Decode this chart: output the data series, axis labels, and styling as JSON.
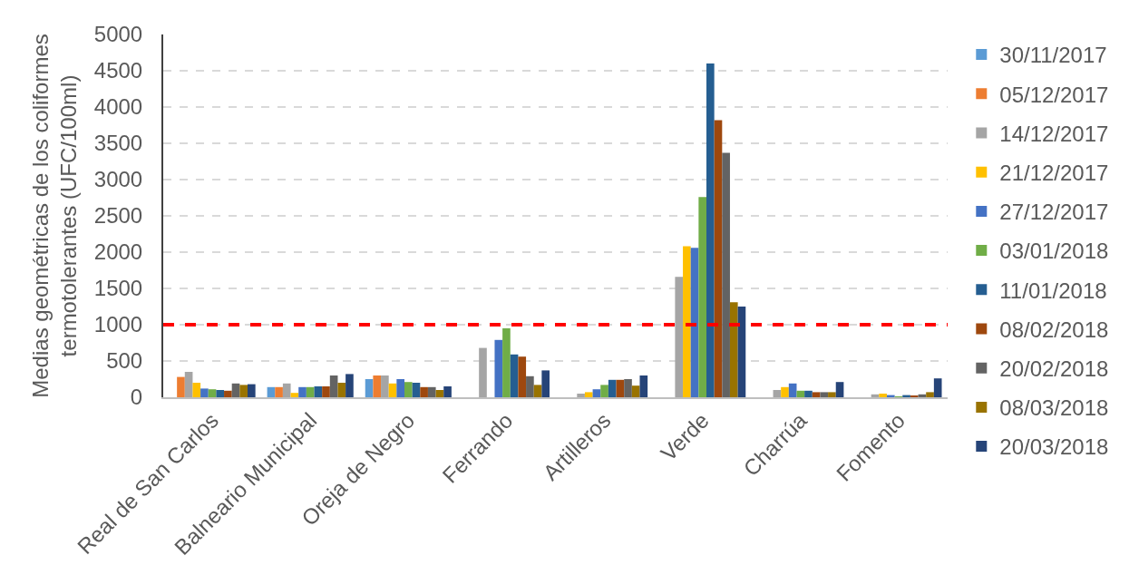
{
  "chart_data": {
    "type": "bar",
    "ylabel": "Medias geométricas de los coliformes\ntermotolerantes (UFC/100ml)",
    "categories": [
      "Real de San Carlos",
      "Balneario Municipal",
      "Oreja de Negro",
      "Ferrando",
      "Artilleros",
      "Verde",
      "Charrúa",
      "Fomento"
    ],
    "series": [
      {
        "name": "30/11/2017",
        "color": "#5b9bd5",
        "values": [
          null,
          140,
          250,
          null,
          null,
          null,
          null,
          null
        ]
      },
      {
        "name": "05/12/2017",
        "color": "#ed7d31",
        "values": [
          280,
          140,
          300,
          null,
          null,
          null,
          null,
          null
        ]
      },
      {
        "name": "14/12/2017",
        "color": "#a5a5a5",
        "values": [
          350,
          190,
          300,
          680,
          50,
          1660,
          100,
          40
        ]
      },
      {
        "name": "21/12/2017",
        "color": "#ffc000",
        "values": [
          200,
          60,
          190,
          null,
          70,
          2080,
          140,
          50
        ]
      },
      {
        "name": "27/12/2017",
        "color": "#4472c4",
        "values": [
          120,
          140,
          250,
          790,
          110,
          2060,
          190,
          30
        ]
      },
      {
        "name": "03/01/2018",
        "color": "#70ad47",
        "values": [
          110,
          140,
          210,
          950,
          170,
          2760,
          90,
          10
        ]
      },
      {
        "name": "11/01/2018",
        "color": "#255e91",
        "values": [
          100,
          150,
          200,
          590,
          240,
          4600,
          90,
          30
        ]
      },
      {
        "name": "08/02/2018",
        "color": "#9e480e",
        "values": [
          90,
          150,
          140,
          560,
          240,
          3820,
          70,
          20
        ]
      },
      {
        "name": "20/02/2018",
        "color": "#636363",
        "values": [
          190,
          300,
          140,
          290,
          250,
          3370,
          70,
          40
        ]
      },
      {
        "name": "08/03/2018",
        "color": "#997300",
        "values": [
          170,
          200,
          100,
          170,
          160,
          1310,
          70,
          70
        ]
      },
      {
        "name": "20/03/2018",
        "color": "#264478",
        "values": [
          180,
          320,
          150,
          370,
          300,
          1250,
          210,
          260
        ]
      }
    ],
    "ylim": [
      0,
      5000
    ],
    "yticks": [
      0,
      500,
      1000,
      1500,
      2000,
      2500,
      3000,
      3500,
      4000,
      4500,
      5000
    ],
    "grid": "y",
    "legend": "right",
    "ref_lines": [
      {
        "axis": "y",
        "value": 1000,
        "color": "#ff0000",
        "line_style": "dashed"
      }
    ]
  }
}
